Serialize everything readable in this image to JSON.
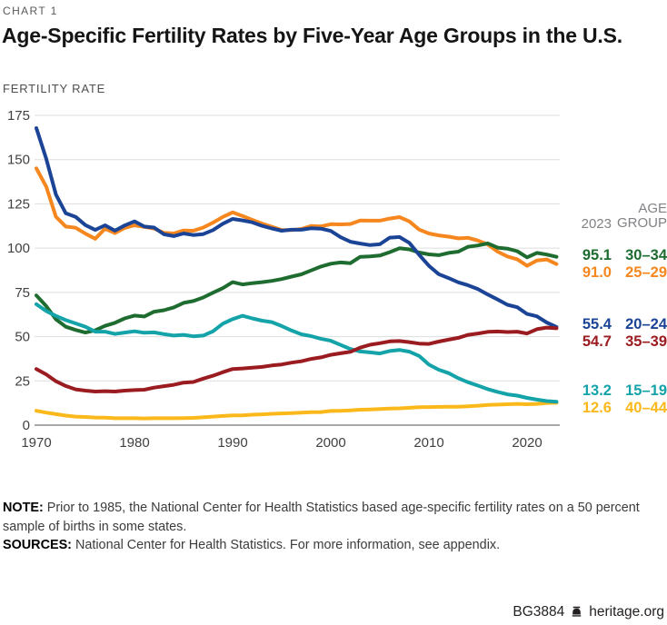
{
  "header": {
    "kicker": "CHART 1",
    "title": "Age-Specific Fertility Rates by Five-Year Age Groups in the U.S.",
    "axis_label": "FERTILITY RATE"
  },
  "chart_data": {
    "type": "line",
    "title": "Age-Specific Fertility Rates by Five-Year Age Groups in the U.S.",
    "ylabel": "FERTILITY RATE",
    "xlabel": "",
    "x_start": 1970,
    "x_end": 2023,
    "x_ticks": [
      1970,
      1980,
      1990,
      2000,
      2010,
      2020
    ],
    "y_ticks": [
      0,
      25,
      50,
      75,
      100,
      125,
      150,
      175
    ],
    "ylim": [
      0,
      175
    ],
    "grid": true,
    "legend_position": "right",
    "series": [
      {
        "id": "25-29",
        "name": "25–29",
        "color": "#F6871F",
        "values": [
          145.1,
          134.8,
          117.7,
          112.2,
          111.5,
          108.2,
          105.3,
          111.0,
          108.5,
          111.4,
          112.9,
          112.0,
          111.0,
          108.7,
          108.3,
          110.0,
          109.8,
          111.6,
          114.4,
          117.6,
          120.2,
          118.2,
          116.0,
          113.9,
          112.1,
          110.3,
          110.2,
          110.8,
          112.5,
          112.3,
          113.5,
          113.4,
          113.6,
          115.6,
          115.5,
          115.5,
          116.7,
          117.5,
          115.1,
          110.5,
          108.3,
          107.2,
          106.5,
          105.5,
          105.8,
          104.3,
          102.1,
          98.0,
          95.3,
          93.7,
          90.0,
          93.0,
          93.6,
          91.0
        ]
      },
      {
        "id": "30-34",
        "name": "30–34",
        "color": "#1E6C30",
        "values": [
          73.3,
          67.3,
          59.8,
          55.6,
          53.8,
          52.3,
          53.6,
          56.1,
          57.8,
          60.3,
          61.9,
          61.4,
          64.1,
          64.9,
          66.5,
          69.1,
          70.1,
          72.1,
          74.8,
          77.4,
          80.8,
          79.5,
          80.2,
          80.8,
          81.5,
          82.5,
          83.9,
          85.2,
          87.4,
          89.6,
          91.2,
          91.9,
          91.5,
          95.1,
          95.3,
          95.8,
          97.7,
          99.9,
          99.3,
          97.5,
          96.5,
          96.0,
          97.3,
          98.0,
          100.8,
          101.5,
          102.7,
          100.3,
          99.7,
          98.3,
          94.8,
          97.3,
          96.4,
          95.1
        ]
      },
      {
        "id": "20-24",
        "name": "20–24",
        "color": "#1B4496",
        "values": [
          167.8,
          150.6,
          130.2,
          119.7,
          117.7,
          113.0,
          110.3,
          112.9,
          109.9,
          112.8,
          115.1,
          112.2,
          111.6,
          107.8,
          106.8,
          108.3,
          107.4,
          107.9,
          110.2,
          113.8,
          116.5,
          115.7,
          114.6,
          112.6,
          111.1,
          109.8,
          110.4,
          110.4,
          111.2,
          111.0,
          109.7,
          106.2,
          103.6,
          102.6,
          101.7,
          102.2,
          105.9,
          106.3,
          103.0,
          96.3,
          90.0,
          85.3,
          83.1,
          80.7,
          79.0,
          76.8,
          73.8,
          71.0,
          68.0,
          66.6,
          62.8,
          61.5,
          58.0,
          55.4
        ]
      },
      {
        "id": "40-44",
        "name": "40–44",
        "color": "#FBB81A",
        "values": [
          8.1,
          7.1,
          6.2,
          5.4,
          4.8,
          4.6,
          4.3,
          4.2,
          3.9,
          3.9,
          3.9,
          3.8,
          3.9,
          3.9,
          3.9,
          4.0,
          4.1,
          4.4,
          4.8,
          5.2,
          5.5,
          5.5,
          5.9,
          6.1,
          6.4,
          6.6,
          6.8,
          7.1,
          7.3,
          7.4,
          8.0,
          8.1,
          8.3,
          8.7,
          8.9,
          9.1,
          9.4,
          9.5,
          9.8,
          10.1,
          10.2,
          10.3,
          10.4,
          10.4,
          10.6,
          11.0,
          11.4,
          11.6,
          11.8,
          12.0,
          11.8,
          12.0,
          12.5,
          12.6
        ]
      },
      {
        "id": "15-19",
        "name": "15–19",
        "color": "#13A3A9",
        "values": [
          68.3,
          64.5,
          61.7,
          59.3,
          57.5,
          55.6,
          52.8,
          52.8,
          51.5,
          52.3,
          53.0,
          52.2,
          52.4,
          51.4,
          50.6,
          51.0,
          50.2,
          50.6,
          53.0,
          57.3,
          59.9,
          61.8,
          60.3,
          59.0,
          58.2,
          56.0,
          53.5,
          51.3,
          50.3,
          48.8,
          47.7,
          45.3,
          43.0,
          41.6,
          41.1,
          40.5,
          41.9,
          42.5,
          41.5,
          39.1,
          34.2,
          31.3,
          29.4,
          26.5,
          24.2,
          22.3,
          20.3,
          18.8,
          17.4,
          16.7,
          15.4,
          14.4,
          13.6,
          13.2
        ]
      },
      {
        "id": "35-39",
        "name": "35–39",
        "color": "#9B1C20",
        "values": [
          31.7,
          28.7,
          24.8,
          22.1,
          20.2,
          19.5,
          19.0,
          19.2,
          19.0,
          19.5,
          19.8,
          20.0,
          21.2,
          22.0,
          22.8,
          24.0,
          24.4,
          26.3,
          27.9,
          29.9,
          31.7,
          32.0,
          32.5,
          32.9,
          33.7,
          34.3,
          35.3,
          36.1,
          37.4,
          38.3,
          39.7,
          40.6,
          41.4,
          43.8,
          45.4,
          46.3,
          47.3,
          47.5,
          46.9,
          46.1,
          45.9,
          47.2,
          48.3,
          49.3,
          51.0,
          51.8,
          52.7,
          52.9,
          52.6,
          52.8,
          51.8,
          54.2,
          55.1,
          54.7
        ]
      }
    ]
  },
  "legend": {
    "year_header": "2023",
    "age_header": "AGE\nGROUP",
    "rows": [
      {
        "value": "95.1",
        "group": "30–34",
        "color": "#1E6C30"
      },
      {
        "value": "91.0",
        "group": "25–29",
        "color": "#F6871F"
      },
      {
        "value": "55.4",
        "group": "20–24",
        "color": "#1B4496"
      },
      {
        "value": "54.7",
        "group": "35–39",
        "color": "#9B1C20"
      },
      {
        "value": "13.2",
        "group": "15–19",
        "color": "#13A3A9"
      },
      {
        "value": "12.6",
        "group": "40–44",
        "color": "#FBB81A"
      }
    ]
  },
  "notes": {
    "note_label": "NOTE:",
    "note_text": "Prior to 1985, the National Center for Health Statistics based age-specific fertility rates on a 50 percent sample of births in some states.",
    "sources_label": "SOURCES:",
    "sources_text": "National Center for Health Statistics. For more information, see appendix."
  },
  "footer": {
    "doc_id": "BG3884",
    "site": "heritage.org"
  }
}
